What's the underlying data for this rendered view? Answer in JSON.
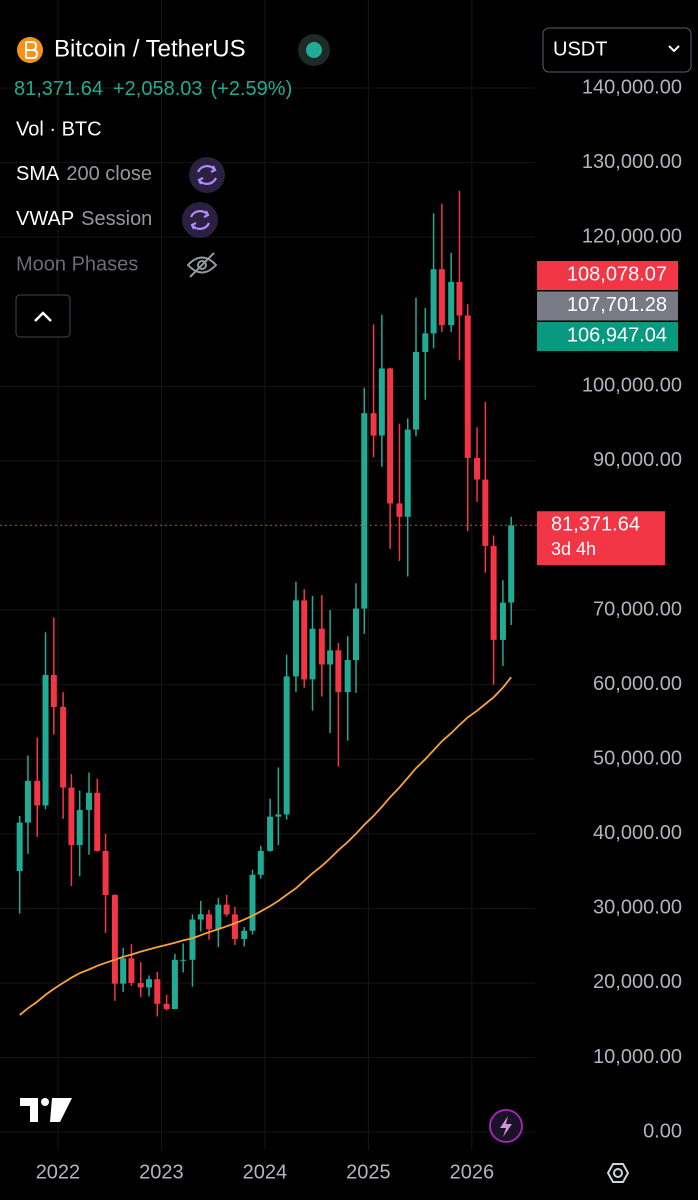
{
  "header": {
    "symbol": "Bitcoin / TetherUS",
    "price": "81,371.64",
    "change": "+2,058.03",
    "change_pct": "(+2.59%)",
    "currency": "USDT",
    "indicators": {
      "vol": "Vol · BTC",
      "sma": "SMA",
      "sma_args": "200 close",
      "vwap": "VWAP",
      "vwap_args": "Session",
      "moon": "Moon Phases"
    }
  },
  "chart_data": {
    "type": "candlestick",
    "x": [
      2021.63,
      2021.71,
      2021.8,
      2021.88,
      2021.96,
      2022.05,
      2022.13,
      2022.21,
      2022.3,
      2022.38,
      2022.46,
      2022.55,
      2022.63,
      2022.71,
      2022.8,
      2022.88,
      2022.96,
      2023.05,
      2023.13,
      2023.21,
      2023.3,
      2023.38,
      2023.46,
      2023.55,
      2023.63,
      2023.71,
      2023.8,
      2023.88,
      2023.96,
      2024.05,
      2024.13,
      2024.21,
      2024.3,
      2024.38,
      2024.46,
      2024.55,
      2024.63,
      2024.71,
      2024.8,
      2024.88,
      2024.96,
      2025.05,
      2025.13,
      2025.21,
      2025.3,
      2025.38,
      2025.46,
      2025.55,
      2025.63,
      2025.71,
      2025.8,
      2025.88,
      2025.96,
      2026.05,
      2026.13,
      2026.21,
      2026.3,
      2026.38
    ],
    "open": [
      35000,
      41500,
      47100,
      43800,
      61300,
      57000,
      46200,
      38500,
      43200,
      45500,
      37700,
      31800,
      19900,
      23300,
      20000,
      19400,
      20500,
      17200,
      16500,
      23100,
      23100,
      28500,
      29200,
      27200,
      30500,
      29200,
      25900,
      27000,
      34500,
      37700,
      42300,
      42600,
      61100,
      71300,
      60700,
      67500,
      62700,
      64600,
      59000,
      63300,
      70200,
      96400,
      93400,
      102400,
      84300,
      82500,
      94200,
      104600,
      107100,
      115700,
      108200,
      114000,
      109500,
      90400,
      87500,
      78600,
      66000,
      71000
    ],
    "high": [
      42400,
      50500,
      52900,
      67000,
      69000,
      59000,
      48000,
      45800,
      48200,
      47400,
      40000,
      31900,
      24700,
      25200,
      22800,
      21000,
      21500,
      18400,
      23900,
      25300,
      29200,
      31000,
      29800,
      31400,
      31800,
      30200,
      27500,
      35200,
      38400,
      44700,
      48900,
      64000,
      73800,
      72800,
      71900,
      72000,
      70000,
      65600,
      66500,
      73600,
      99800,
      108300,
      109600,
      102500,
      95000,
      95700,
      111900,
      110500,
      123200,
      124500,
      117900,
      126200,
      111000,
      94500,
      97900,
      80000,
      74000,
      82500
    ],
    "low": [
      29300,
      37300,
      39600,
      43300,
      53300,
      42000,
      33000,
      34300,
      37200,
      37600,
      26700,
      17600,
      18800,
      19600,
      18100,
      18200,
      15500,
      16300,
      16500,
      21400,
      19500,
      26900,
      25800,
      24800,
      28900,
      25100,
      24900,
      26500,
      34000,
      37600,
      38500,
      41900,
      59000,
      59600,
      56500,
      58400,
      53500,
      49000,
      52500,
      58900,
      66800,
      90500,
      89200,
      78200,
      76600,
      74500,
      93300,
      98200,
      105100,
      107300,
      107300,
      103500,
      80600,
      84500,
      75000,
      60000,
      62500,
      68000
    ],
    "close": [
      41500,
      47100,
      43800,
      61300,
      57000,
      46200,
      38500,
      43200,
      45500,
      37700,
      31800,
      19900,
      23300,
      20000,
      19400,
      20500,
      17200,
      16500,
      23100,
      23100,
      28500,
      29200,
      27200,
      30500,
      29200,
      25900,
      27000,
      34500,
      37700,
      42300,
      42600,
      61100,
      71300,
      60700,
      67500,
      62700,
      64600,
      59000,
      63300,
      70200,
      96400,
      93400,
      102400,
      84300,
      82500,
      94200,
      104600,
      107100,
      115700,
      108200,
      114000,
      109500,
      90400,
      87500,
      78600,
      66000,
      71000,
      81371.64
    ],
    "up_color": "#22ab94",
    "down_color": "#f23645",
    "sma": {
      "color": "#f7a33b",
      "values": [
        15700,
        16600,
        17500,
        18400,
        19200,
        20000,
        20700,
        21300,
        21800,
        22300,
        22700,
        23100,
        23500,
        23800,
        24200,
        24500,
        24800,
        25100,
        25400,
        25700,
        26000,
        26400,
        26800,
        27200,
        27600,
        28000,
        28500,
        29000,
        29600,
        30300,
        31000,
        31800,
        32700,
        33700,
        34700,
        35700,
        36700,
        37800,
        38900,
        40000,
        41200,
        42400,
        43600,
        44900,
        46200,
        47500,
        48800,
        50000,
        51200,
        52400,
        53500,
        54600,
        55600,
        56500,
        57400,
        58300,
        59600,
        61000
      ]
    },
    "last_price": {
      "value": 81371.64,
      "label": "81,371.64",
      "countdown": "3d 4h",
      "color": "#f23645"
    },
    "price_tags": [
      {
        "value": 108078.07,
        "label": "108,078.07",
        "color": "#f23645"
      },
      {
        "value": 107701.28,
        "label": "107,701.28",
        "color": "#787b86"
      },
      {
        "value": 106947.04,
        "label": "106,947.04",
        "color": "#089981"
      }
    ],
    "xlim": [
      2021.44,
      2026.61
    ],
    "ylim": [
      -2400,
      151800
    ],
    "xticks": [
      {
        "value": 2022,
        "label": "2022"
      },
      {
        "value": 2023,
        "label": "2023"
      },
      {
        "value": 2024,
        "label": "2024"
      },
      {
        "value": 2025,
        "label": "2025"
      },
      {
        "value": 2026,
        "label": "2026"
      }
    ],
    "yticks": [
      {
        "value": 0,
        "label": "0.00"
      },
      {
        "value": 10000,
        "label": "10,000.00"
      },
      {
        "value": 20000,
        "label": "20,000.00"
      },
      {
        "value": 30000,
        "label": "30,000.00"
      },
      {
        "value": 40000,
        "label": "40,000.00"
      },
      {
        "value": 50000,
        "label": "50,000.00"
      },
      {
        "value": 60000,
        "label": "60,000.00"
      },
      {
        "value": 70000,
        "label": "70,000.00"
      },
      {
        "value": 90000,
        "label": "90,000.00"
      },
      {
        "value": 100000,
        "label": "100,000.00"
      },
      {
        "value": 120000,
        "label": "120,000.00"
      },
      {
        "value": 130000,
        "label": "130,000.00"
      },
      {
        "value": 140000,
        "label": "140,000.00"
      }
    ],
    "grid": true
  }
}
